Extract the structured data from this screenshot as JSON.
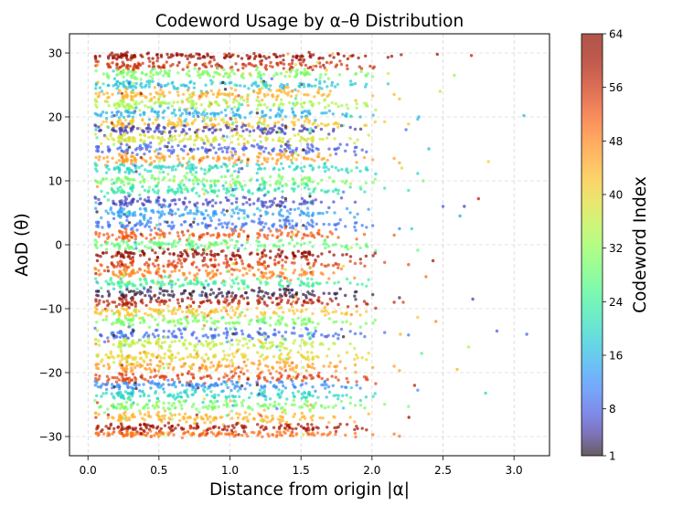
{
  "chart_data": {
    "type": "scatter",
    "title": "Codeword Usage by α–θ Distribution",
    "xlabel": "Distance from origin |α|",
    "ylabel": "AoD (θ)",
    "xlim": [
      -0.13,
      3.25
    ],
    "ylim": [
      -33,
      33
    ],
    "xticks": [
      0.0,
      0.5,
      1.0,
      1.5,
      2.0,
      2.5,
      3.0
    ],
    "xtick_labels": [
      "0.0",
      "0.5",
      "1.0",
      "1.5",
      "2.0",
      "2.5",
      "3.0"
    ],
    "yticks": [
      -30,
      -20,
      -10,
      0,
      10,
      20,
      30
    ],
    "ytick_labels": [
      "−30",
      "−20",
      "−10",
      "0",
      "10",
      "20",
      "30"
    ],
    "grid": true,
    "colormap": "turbo",
    "colorbar": {
      "label": "Codeword Index",
      "range": [
        1,
        64
      ],
      "ticks": [
        1,
        8,
        16,
        24,
        32,
        40,
        48,
        56,
        64
      ],
      "tick_labels": [
        "1",
        "8",
        "16",
        "24",
        "32",
        "40",
        "48",
        "56",
        "64"
      ]
    },
    "bands": [
      {
        "theta": 29.5,
        "codeword": 62,
        "spread": 0.5
      },
      {
        "theta": 28.0,
        "codeword": 56,
        "spread": 0.7
      },
      {
        "theta": 26.8,
        "codeword": 30,
        "spread": 0.7
      },
      {
        "theta": 25.0,
        "codeword": 18,
        "spread": 0.8
      },
      {
        "theta": 23.5,
        "codeword": 44,
        "spread": 0.8
      },
      {
        "theta": 22.0,
        "codeword": 34,
        "spread": 0.8
      },
      {
        "theta": 20.5,
        "codeword": 16,
        "spread": 0.8
      },
      {
        "theta": 19.0,
        "codeword": 42,
        "spread": 0.8
      },
      {
        "theta": 18.0,
        "codeword": 5,
        "spread": 0.7
      },
      {
        "theta": 16.6,
        "codeword": 38,
        "spread": 0.8
      },
      {
        "theta": 15.0,
        "codeword": 8,
        "spread": 0.8
      },
      {
        "theta": 13.5,
        "codeword": 46,
        "spread": 0.8
      },
      {
        "theta": 12.0,
        "codeword": 20,
        "spread": 0.8
      },
      {
        "theta": 10.0,
        "codeword": 30,
        "spread": 0.9
      },
      {
        "theta": 8.6,
        "codeword": 22,
        "spread": 0.8
      },
      {
        "theta": 6.6,
        "codeword": 6,
        "spread": 0.8
      },
      {
        "theta": 5.0,
        "codeword": 14,
        "spread": 0.8
      },
      {
        "theta": 3.2,
        "codeword": 10,
        "spread": 0.8
      },
      {
        "theta": 1.5,
        "codeword": 52,
        "spread": 0.8
      },
      {
        "theta": 0.0,
        "codeword": 28,
        "spread": 0.8
      },
      {
        "theta": -1.5,
        "codeword": 63,
        "spread": 0.7
      },
      {
        "theta": -3.0,
        "codeword": 54,
        "spread": 0.8
      },
      {
        "theta": -4.5,
        "codeword": 48,
        "spread": 0.8
      },
      {
        "theta": -6.0,
        "codeword": 24,
        "spread": 0.8
      },
      {
        "theta": -7.6,
        "codeword": 2,
        "spread": 0.8
      },
      {
        "theta": -9.0,
        "codeword": 58,
        "spread": 0.8
      },
      {
        "theta": -10.5,
        "codeword": 42,
        "spread": 0.8
      },
      {
        "theta": -12.0,
        "codeword": 30,
        "spread": 0.8
      },
      {
        "theta": -14.0,
        "codeword": 9,
        "spread": 0.9
      },
      {
        "theta": -15.5,
        "codeword": 36,
        "spread": 0.8
      },
      {
        "theta": -17.5,
        "codeword": 40,
        "spread": 0.8
      },
      {
        "theta": -19.0,
        "codeword": 46,
        "spread": 0.8
      },
      {
        "theta": -20.8,
        "codeword": 54,
        "spread": 0.8
      },
      {
        "theta": -22.0,
        "codeword": 12,
        "spread": 0.7
      },
      {
        "theta": -23.5,
        "codeword": 20,
        "spread": 0.8
      },
      {
        "theta": -25.2,
        "codeword": 30,
        "spread": 0.8
      },
      {
        "theta": -27.0,
        "codeword": 44,
        "spread": 0.8
      },
      {
        "theta": -28.6,
        "codeword": 60,
        "spread": 0.6
      },
      {
        "theta": -29.6,
        "codeword": 50,
        "spread": 0.4
      }
    ],
    "points_per_band": 150,
    "alpha_core_range": [
      0.2,
      1.6
    ],
    "outlier_points": [
      {
        "x": 3.07,
        "y": 20.2,
        "codeword": 16
      },
      {
        "x": 3.09,
        "y": -14.0,
        "codeword": 8
      },
      {
        "x": 2.88,
        "y": -13.5,
        "codeword": 8
      },
      {
        "x": 2.82,
        "y": 13.0,
        "codeword": 40
      },
      {
        "x": 2.8,
        "y": -23.2,
        "codeword": 20
      },
      {
        "x": 2.71,
        "y": -8.5,
        "codeword": 5
      },
      {
        "x": 2.65,
        "y": 6.0,
        "codeword": 5
      },
      {
        "x": 2.62,
        "y": 4.5,
        "codeword": 14
      },
      {
        "x": 2.68,
        "y": -16.0,
        "codeword": 34
      },
      {
        "x": 2.6,
        "y": -19.5,
        "codeword": 44
      },
      {
        "x": 2.5,
        "y": 6.0,
        "codeword": 8
      },
      {
        "x": 2.48,
        "y": 24.0,
        "codeword": 38
      },
      {
        "x": 2.58,
        "y": 26.5,
        "codeword": 32
      },
      {
        "x": 2.7,
        "y": 29.6,
        "codeword": 58
      },
      {
        "x": 2.46,
        "y": 29.8,
        "codeword": 60
      },
      {
        "x": 2.75,
        "y": 7.2,
        "codeword": 58
      },
      {
        "x": 2.45,
        "y": -12.0,
        "codeword": 48
      },
      {
        "x": 2.43,
        "y": -2.5,
        "codeword": 60
      },
      {
        "x": 2.4,
        "y": 15.0,
        "codeword": 16
      },
      {
        "x": 2.38,
        "y": -5.0,
        "codeword": 50
      },
      {
        "x": 2.36,
        "y": 10.0,
        "codeword": 30
      },
      {
        "x": 2.35,
        "y": -17.0,
        "codeword": 26
      },
      {
        "x": 2.33,
        "y": 20.0,
        "codeword": 16
      },
      {
        "x": 2.3,
        "y": -22.0,
        "codeword": 58
      },
      {
        "x": 2.28,
        "y": 2.5,
        "codeword": 20
      },
      {
        "x": 2.26,
        "y": -27.0,
        "codeword": 62
      },
      {
        "x": 2.24,
        "y": 18.0,
        "codeword": 10
      },
      {
        "x": 2.22,
        "y": -9.0,
        "codeword": 54
      },
      {
        "x": 2.21,
        "y": 12.0,
        "codeword": 40
      },
      {
        "x": 2.2,
        "y": -14.0,
        "codeword": 44
      }
    ]
  }
}
